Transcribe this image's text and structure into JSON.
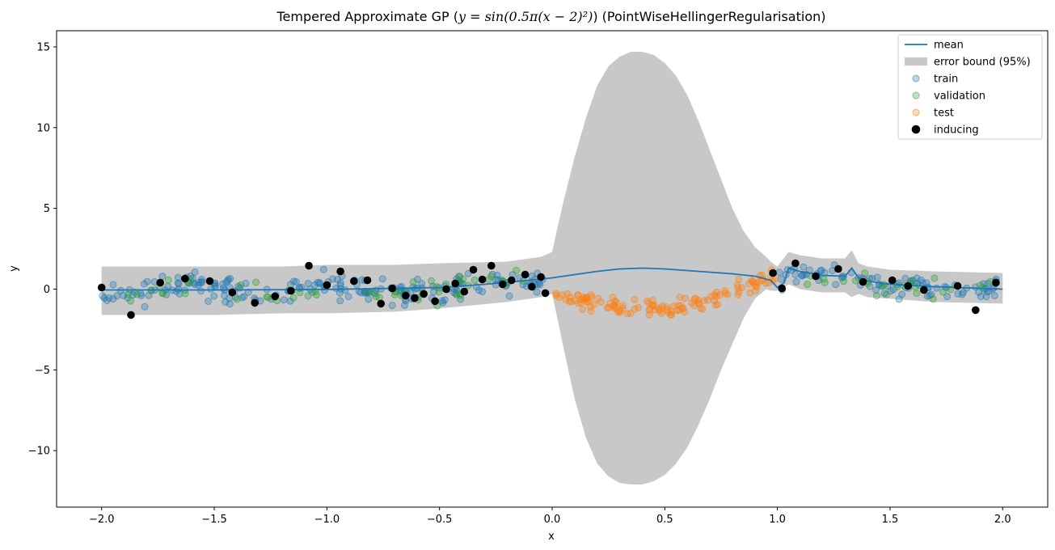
{
  "chart_data": {
    "type": "scatter",
    "title_parts": {
      "prefix": "Tempered Approximate GP (",
      "math": "y = sin(0.5π(x − 2)²)",
      "suffix": ") (PointWiseHellingerRegularisation)"
    },
    "xlabel": "x",
    "ylabel": "y",
    "xlim": [
      -2.2,
      2.2
    ],
    "ylim": [
      -13.5,
      16
    ],
    "xticks": [
      -2.0,
      -1.5,
      -1.0,
      -0.5,
      0.0,
      0.5,
      1.0,
      1.5,
      2.0
    ],
    "xtick_labels": [
      "−2.0",
      "−1.5",
      "−1.0",
      "−0.5",
      "0.0",
      "0.5",
      "1.0",
      "1.5",
      "2.0"
    ],
    "yticks": [
      -10,
      -5,
      0,
      5,
      10,
      15
    ],
    "ytick_labels": [
      "−10",
      "−5",
      "0",
      "5",
      "10",
      "15"
    ],
    "grid": false,
    "legend_position": "top-right",
    "legend": [
      {
        "key": "mean",
        "label": "mean",
        "kind": "line"
      },
      {
        "key": "band",
        "label": "error bound (95%)",
        "kind": "patch"
      },
      {
        "key": "train",
        "label": "train",
        "kind": "marker"
      },
      {
        "key": "validation",
        "label": "validation",
        "kind": "marker"
      },
      {
        "key": "test",
        "label": "test",
        "kind": "marker"
      },
      {
        "key": "inducing",
        "label": "inducing",
        "kind": "marker"
      }
    ],
    "colors": {
      "mean": "#1f77b4",
      "band": "#c8c8c8",
      "train": "#1f77b4",
      "validation": "#2ca02c",
      "test": "#ff7f0e",
      "inducing": "#000000"
    },
    "mean": {
      "x": [
        -2.0,
        -1.5,
        -1.0,
        -0.5,
        -0.3,
        -0.1,
        0.0,
        0.1,
        0.2,
        0.3,
        0.4,
        0.5,
        0.6,
        0.7,
        0.8,
        0.9,
        0.97,
        1.0,
        1.03,
        1.05,
        1.1,
        1.2,
        1.3,
        1.33,
        1.36,
        1.4,
        1.5,
        1.7,
        2.0
      ],
      "y": [
        -0.05,
        -0.05,
        -0.02,
        0.1,
        0.3,
        0.55,
        0.7,
        0.9,
        1.1,
        1.25,
        1.3,
        1.25,
        1.15,
        1.05,
        0.95,
        0.8,
        0.55,
        0.1,
        0.4,
        1.3,
        1.1,
        0.85,
        0.8,
        1.3,
        0.7,
        0.5,
        0.3,
        0.15,
        0.0
      ]
    },
    "band": {
      "x": [
        -2.0,
        -1.7,
        -1.5,
        -1.2,
        -1.0,
        -0.7,
        -0.5,
        -0.2,
        -0.05,
        0.0,
        0.02,
        0.05,
        0.1,
        0.15,
        0.2,
        0.25,
        0.3,
        0.35,
        0.4,
        0.45,
        0.5,
        0.55,
        0.6,
        0.65,
        0.7,
        0.75,
        0.8,
        0.85,
        0.9,
        0.95,
        0.97,
        1.0,
        1.05,
        1.1,
        1.2,
        1.3,
        1.33,
        1.36,
        1.4,
        1.5,
        1.7,
        2.0
      ],
      "upper": [
        1.4,
        1.4,
        1.4,
        1.4,
        1.5,
        1.5,
        1.6,
        1.7,
        2.0,
        2.3,
        3.6,
        5.4,
        8.2,
        10.6,
        12.6,
        13.8,
        14.4,
        14.7,
        14.7,
        14.5,
        14.0,
        13.2,
        12.0,
        10.4,
        8.6,
        6.8,
        5.0,
        3.6,
        2.6,
        2.0,
        1.7,
        1.4,
        2.3,
        2.1,
        1.9,
        1.9,
        2.4,
        1.6,
        1.4,
        1.2,
        1.1,
        1.0
      ],
      "lower": [
        -1.6,
        -1.6,
        -1.6,
        -1.5,
        -1.5,
        -1.4,
        -1.2,
        -0.8,
        -0.5,
        -0.3,
        -1.6,
        -3.6,
        -6.8,
        -9.2,
        -10.8,
        -11.6,
        -12.0,
        -12.1,
        -12.1,
        -11.9,
        -11.5,
        -10.8,
        -9.8,
        -8.4,
        -6.8,
        -5.0,
        -3.4,
        -1.8,
        -0.6,
        0.0,
        -0.1,
        -0.1,
        0.3,
        0.0,
        -0.2,
        -0.2,
        -0.5,
        -0.3,
        -0.5,
        -0.6,
        -0.8,
        -0.9
      ]
    },
    "inducing": {
      "x": [
        -2.0,
        -1.87,
        -1.74,
        -1.63,
        -1.52,
        -1.42,
        -1.32,
        -1.23,
        -1.16,
        -1.08,
        -1.0,
        -0.94,
        -0.88,
        -0.82,
        -0.76,
        -0.71,
        -0.65,
        -0.61,
        -0.57,
        -0.52,
        -0.47,
        -0.43,
        -0.39,
        -0.35,
        -0.31,
        -0.27,
        -0.22,
        -0.18,
        -0.12,
        -0.09,
        -0.05,
        -0.03,
        0.98,
        1.02,
        1.08,
        1.17,
        1.27,
        1.38,
        1.51,
        1.58,
        1.65,
        1.8,
        1.88,
        1.97
      ],
      "y": [
        0.1,
        -1.6,
        0.4,
        0.65,
        0.5,
        -0.2,
        -0.85,
        -0.45,
        -0.1,
        1.45,
        0.25,
        1.1,
        0.5,
        0.55,
        -0.9,
        0.05,
        -0.4,
        -0.55,
        -0.3,
        -0.75,
        0.0,
        0.35,
        -0.15,
        1.2,
        0.6,
        1.45,
        0.3,
        0.55,
        0.9,
        0.15,
        0.75,
        -0.25,
        1.0,
        0.05,
        1.6,
        0.8,
        1.25,
        0.45,
        0.55,
        0.2,
        -0.05,
        0.2,
        -1.3,
        0.4
      ]
    }
  }
}
